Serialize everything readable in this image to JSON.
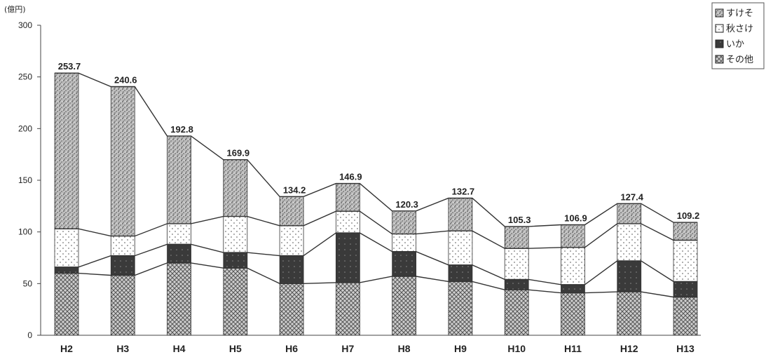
{
  "chart_data": {
    "type": "bar",
    "stacked": true,
    "unit_label": "(億円)",
    "title": "",
    "xlabel": "",
    "ylabel": "",
    "ylim": [
      0,
      300
    ],
    "yticks": [
      0,
      50,
      100,
      150,
      200,
      250,
      300
    ],
    "grid": false,
    "legend_position": "top-right",
    "categories": [
      "H2",
      "H3",
      "H4",
      "H5",
      "H6",
      "H7",
      "H8",
      "H9",
      "H10",
      "H11",
      "H12",
      "H13"
    ],
    "totals": [
      253.7,
      240.6,
      192.8,
      169.9,
      134.2,
      146.9,
      120.3,
      132.7,
      105.3,
      106.9,
      127.4,
      109.2
    ],
    "total_labels": [
      "253.7",
      "240.6",
      "192.8",
      "169.9",
      "134.2",
      "146.9",
      "120.3",
      "132.7",
      "105.3",
      "106.9",
      "127.4",
      "109.2"
    ],
    "series": [
      {
        "name": "その他",
        "pattern": "crosshatch",
        "values": [
          60,
          58,
          70,
          65,
          50,
          51,
          57,
          52,
          44,
          41,
          42,
          37
        ]
      },
      {
        "name": "いか",
        "pattern": "solid-dark",
        "values": [
          6,
          19,
          18,
          15,
          27,
          48,
          24,
          16,
          10,
          8,
          30,
          15
        ]
      },
      {
        "name": "秋さけ",
        "pattern": "dots",
        "values": [
          37,
          19,
          20,
          35,
          29,
          21,
          17,
          33,
          30,
          36,
          36,
          40
        ]
      },
      {
        "name": "すけそ",
        "pattern": "speckle",
        "values": [
          150.7,
          144.6,
          84.8,
          54.9,
          28.2,
          26.9,
          22.3,
          31.7,
          21.3,
          21.9,
          19.4,
          17.2
        ]
      }
    ],
    "legend_order": [
      "すけそ",
      "秋さけ",
      "いか",
      "その他"
    ]
  }
}
